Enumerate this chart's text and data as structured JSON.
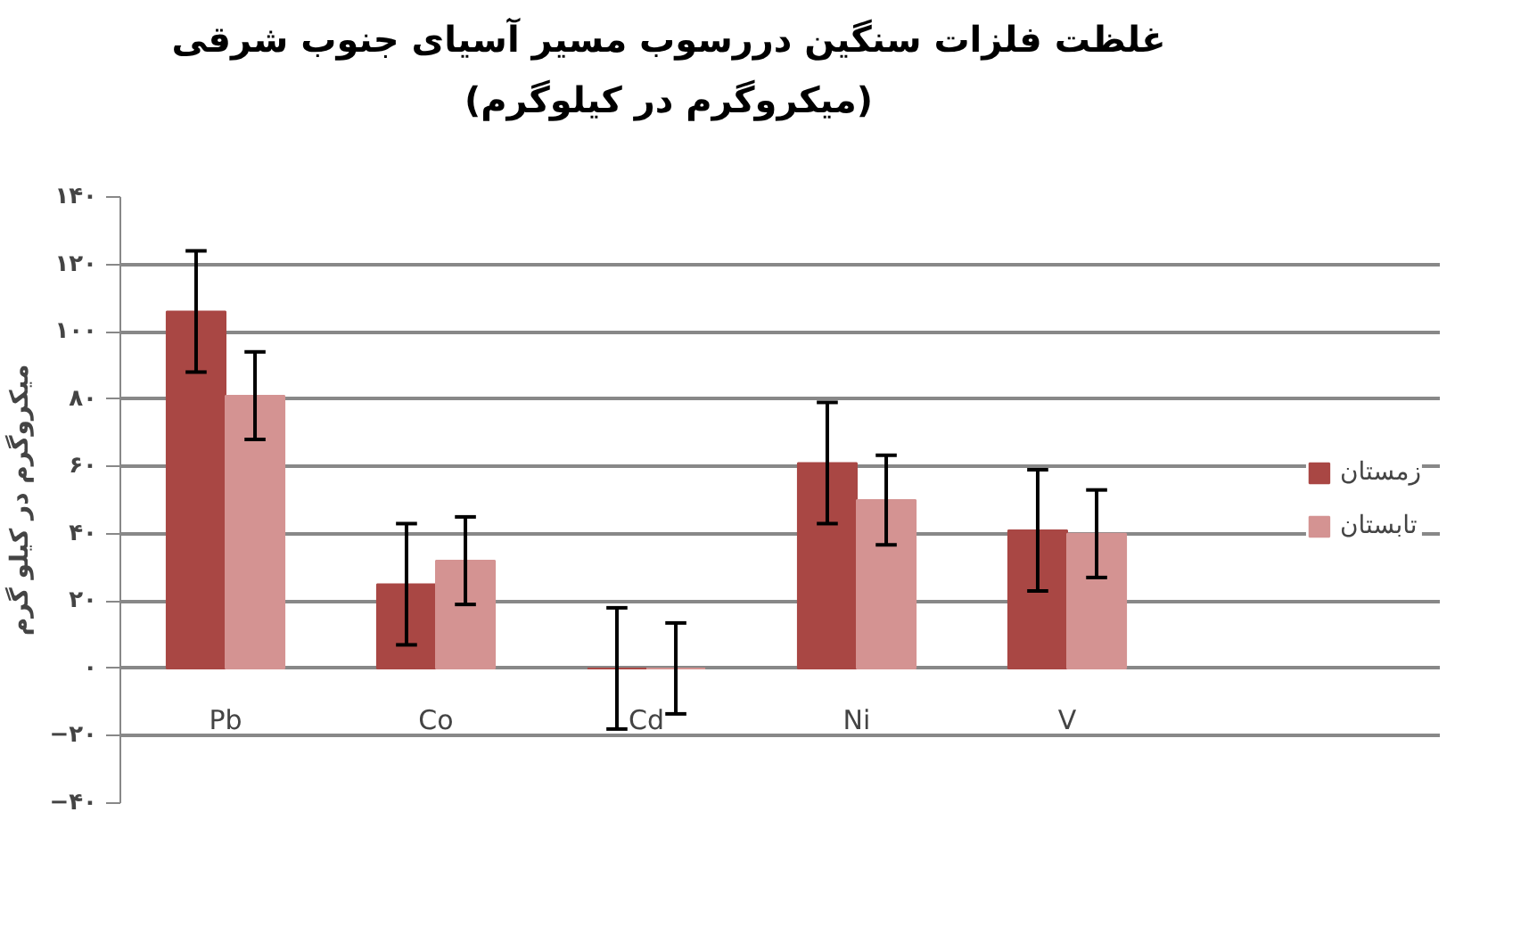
{
  "chart_data": {
    "type": "bar",
    "title": "غلظت فلزات سنگین دررسوب مسیر آسیای جنوب شرقی\n(میکروگرم در کیلوگرم)",
    "ylabel": "میکروگرم در کیلو گرم",
    "categories": [
      "Pb",
      "Co",
      "Cd",
      "Ni",
      "V"
    ],
    "series": [
      {
        "name": "زمستان",
        "color": "#a94744",
        "values": [
          106,
          25,
          0,
          61,
          41
        ],
        "errors": [
          18,
          18,
          18,
          18,
          18
        ]
      },
      {
        "name": "تابستان",
        "color": "#d49392",
        "values": [
          81,
          32,
          0,
          50,
          40
        ],
        "errors": [
          13,
          13,
          13.5,
          13.3,
          13
        ]
      }
    ],
    "ylim": [
      -40,
      140
    ],
    "yticks": [
      {
        "value": -40,
        "label": "−۴۰"
      },
      {
        "value": -20,
        "label": "−۲۰"
      },
      {
        "value": 0,
        "label": "۰"
      },
      {
        "value": 20,
        "label": "۲۰"
      },
      {
        "value": 40,
        "label": "۴۰"
      },
      {
        "value": 60,
        "label": "۶۰"
      },
      {
        "value": 80,
        "label": "۸۰"
      },
      {
        "value": 100,
        "label": "۱۰۰"
      },
      {
        "value": 120,
        "label": "۱۲۰"
      },
      {
        "value": 140,
        "label": "۱۴۰"
      }
    ],
    "grid": "y",
    "legend": "right"
  }
}
